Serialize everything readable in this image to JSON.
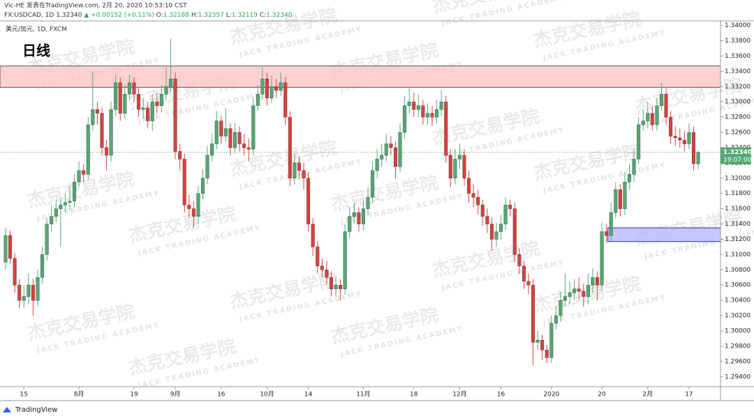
{
  "header": {
    "line1": "Vic-HE 发表在TradingView.com, 2月 20, 2020 10:53:10 CST",
    "symbol": "FX:USDCAD, 1D",
    "last": "1.32340",
    "change": "▲ +0.00152 (+0.11%)",
    "ohlc": [
      [
        "O:",
        "1.32188"
      ],
      [
        "H:",
        "1.32357"
      ],
      [
        "L:",
        "1.32119"
      ],
      [
        "C:",
        "1.32340"
      ]
    ]
  },
  "legend": {
    "pair": "美元/加元, 1D, FXCM",
    "timeframe": "日线"
  },
  "price_tag": {
    "price": "1.32340",
    "countdown": "19:07:00"
  },
  "watermark": {
    "cn": "杰克交易学院",
    "en": "JACK TRADING ACADEMY"
  },
  "brand": "TradingView",
  "chart_data": {
    "type": "candlestick",
    "up_color": "#53a874",
    "down_color": "#d9413e",
    "ylim": [
      1.2927,
      1.3406
    ],
    "yticks": [
      {
        "value": 1.294,
        "label": "1.29400"
      },
      {
        "value": 1.296,
        "label": "1.29600"
      },
      {
        "value": 1.298,
        "label": "1.29800"
      },
      {
        "value": 1.3,
        "label": "1.30000"
      },
      {
        "value": 1.302,
        "label": "1.30200"
      },
      {
        "value": 1.304,
        "label": "1.30400"
      },
      {
        "value": 1.306,
        "label": "1.30600"
      },
      {
        "value": 1.308,
        "label": "1.30800"
      },
      {
        "value": 1.31,
        "label": "1.31000"
      },
      {
        "value": 1.312,
        "label": "1.31200"
      },
      {
        "value": 1.314,
        "label": "1.31400"
      },
      {
        "value": 1.316,
        "label": "1.31600"
      },
      {
        "value": 1.318,
        "label": "1.31800"
      },
      {
        "value": 1.32,
        "label": "1.32000"
      },
      {
        "value": 1.322,
        "label": "1.32200"
      },
      {
        "value": 1.324,
        "label": "1.32400"
      },
      {
        "value": 1.326,
        "label": "1.32600"
      },
      {
        "value": 1.328,
        "label": "1.32800"
      },
      {
        "value": 1.33,
        "label": "1.33000"
      },
      {
        "value": 1.332,
        "label": "1.33200"
      },
      {
        "value": 1.334,
        "label": "1.33400"
      },
      {
        "value": 1.336,
        "label": "1.33600"
      },
      {
        "value": 1.338,
        "label": "1.33800"
      },
      {
        "value": 1.34,
        "label": "1.34000"
      }
    ],
    "zones": [
      {
        "low": 1.3319,
        "high": 1.3347,
        "color": "#ffc4c4",
        "border": "#555555"
      },
      {
        "low": 1.3117,
        "high": 1.3135,
        "start": 132,
        "color": "#b8b8ff",
        "border": "#2a2a9a"
      }
    ],
    "categories": [
      null,
      null,
      null,
      null,
      "15",
      null,
      null,
      null,
      null,
      null,
      null,
      null,
      null,
      null,
      null,
      null,
      "8月",
      null,
      null,
      null,
      null,
      null,
      null,
      null,
      null,
      null,
      null,
      null,
      "19",
      null,
      null,
      null,
      null,
      null,
      null,
      null,
      null,
      "9月",
      null,
      null,
      null,
      null,
      null,
      null,
      null,
      null,
      null,
      "16",
      null,
      null,
      null,
      null,
      null,
      null,
      null,
      null,
      null,
      "10月",
      null,
      null,
      null,
      null,
      null,
      null,
      null,
      null,
      "14",
      null,
      null,
      null,
      null,
      null,
      null,
      null,
      null,
      null,
      null,
      null,
      "11月",
      null,
      null,
      null,
      null,
      null,
      null,
      null,
      null,
      null,
      null,
      "18",
      null,
      null,
      null,
      null,
      null,
      null,
      null,
      null,
      null,
      "12月",
      null,
      null,
      null,
      null,
      null,
      null,
      null,
      null,
      "16",
      null,
      null,
      null,
      null,
      null,
      null,
      null,
      null,
      null,
      null,
      "2020",
      null,
      null,
      null,
      null,
      null,
      null,
      null,
      null,
      null,
      null,
      "20",
      null,
      null,
      null,
      null,
      null,
      null,
      null,
      null,
      null,
      "2月",
      null,
      null,
      null,
      null,
      null,
      null,
      null,
      null,
      "17",
      null,
      null
    ],
    "candles": [
      [
        1.309,
        1.3135,
        1.308,
        1.3125
      ],
      [
        1.3125,
        1.3132,
        1.3088,
        1.3095
      ],
      [
        1.3095,
        1.3102,
        1.305,
        1.306
      ],
      [
        1.306,
        1.3068,
        1.303,
        1.304
      ],
      [
        1.304,
        1.306,
        1.303,
        1.3045
      ],
      [
        1.3045,
        1.3075,
        1.3035,
        1.306
      ],
      [
        1.306,
        1.3068,
        1.302,
        1.304
      ],
      [
        1.304,
        1.308,
        1.3032,
        1.307
      ],
      [
        1.307,
        1.311,
        1.3062,
        1.31
      ],
      [
        1.31,
        1.3148,
        1.3092,
        1.314
      ],
      [
        1.314,
        1.3165,
        1.313,
        1.315
      ],
      [
        1.315,
        1.3172,
        1.3142,
        1.316
      ],
      [
        1.316,
        1.3175,
        1.311,
        1.3165
      ],
      [
        1.3165,
        1.318,
        1.3155,
        1.3168
      ],
      [
        1.3168,
        1.319,
        1.3158,
        1.317
      ],
      [
        1.317,
        1.3205,
        1.3162,
        1.3195
      ],
      [
        1.3195,
        1.3222,
        1.3188,
        1.321
      ],
      [
        1.321,
        1.3218,
        1.3195,
        1.3205
      ],
      [
        1.3205,
        1.328,
        1.3198,
        1.327
      ],
      [
        1.327,
        1.334,
        1.3262,
        1.329
      ],
      [
        1.329,
        1.33,
        1.327,
        1.3285
      ],
      [
        1.3285,
        1.3292,
        1.323,
        1.324
      ],
      [
        1.324,
        1.325,
        1.321,
        1.323
      ],
      [
        1.323,
        1.33,
        1.3222,
        1.329
      ],
      [
        1.329,
        1.3335,
        1.3282,
        1.3325
      ],
      [
        1.3325,
        1.3332,
        1.3275,
        1.3285
      ],
      [
        1.3285,
        1.3322,
        1.3278,
        1.331
      ],
      [
        1.331,
        1.3335,
        1.3302,
        1.3325
      ],
      [
        1.3325,
        1.3332,
        1.33,
        1.331
      ],
      [
        1.331,
        1.3318,
        1.328,
        1.329
      ],
      [
        1.329,
        1.3305,
        1.3278,
        1.3292
      ],
      [
        1.3292,
        1.33,
        1.3265,
        1.3275
      ],
      [
        1.3275,
        1.331,
        1.3262,
        1.33
      ],
      [
        1.33,
        1.3312,
        1.3285,
        1.3295
      ],
      [
        1.3295,
        1.3322,
        1.3286,
        1.331
      ],
      [
        1.331,
        1.3345,
        1.3302,
        1.332
      ],
      [
        1.332,
        1.3383,
        1.3312,
        1.333
      ],
      [
        1.333,
        1.3338,
        1.3225,
        1.3235
      ],
      [
        1.3235,
        1.3245,
        1.321,
        1.3225
      ],
      [
        1.3225,
        1.3232,
        1.3155,
        1.3165
      ],
      [
        1.3165,
        1.3178,
        1.3148,
        1.316
      ],
      [
        1.316,
        1.317,
        1.3135,
        1.315
      ],
      [
        1.315,
        1.319,
        1.314,
        1.318
      ],
      [
        1.318,
        1.3212,
        1.3172,
        1.32
      ],
      [
        1.32,
        1.3242,
        1.3192,
        1.323
      ],
      [
        1.323,
        1.3258,
        1.3222,
        1.3245
      ],
      [
        1.3245,
        1.3288,
        1.3238,
        1.3275
      ],
      [
        1.3275,
        1.3282,
        1.3245,
        1.3255
      ],
      [
        1.3255,
        1.3292,
        1.3248,
        1.3265
      ],
      [
        1.3265,
        1.3272,
        1.323,
        1.324
      ],
      [
        1.324,
        1.3272,
        1.3232,
        1.326
      ],
      [
        1.326,
        1.3268,
        1.3235,
        1.3245
      ],
      [
        1.3245,
        1.3258,
        1.323,
        1.324
      ],
      [
        1.324,
        1.3252,
        1.3222,
        1.3238
      ],
      [
        1.3238,
        1.3305,
        1.323,
        1.3295
      ],
      [
        1.3295,
        1.3322,
        1.3288,
        1.331
      ],
      [
        1.331,
        1.3345,
        1.3302,
        1.333
      ],
      [
        1.333,
        1.3338,
        1.3295,
        1.3305
      ],
      [
        1.3305,
        1.3335,
        1.3298,
        1.332
      ],
      [
        1.332,
        1.333,
        1.3305,
        1.3315
      ],
      [
        1.3315,
        1.3338,
        1.3308,
        1.3325
      ],
      [
        1.3325,
        1.3332,
        1.327,
        1.328
      ],
      [
        1.328,
        1.3288,
        1.319,
        1.32
      ],
      [
        1.32,
        1.3232,
        1.3192,
        1.322
      ],
      [
        1.322,
        1.3228,
        1.3198,
        1.321
      ],
      [
        1.321,
        1.322,
        1.3185,
        1.32
      ],
      [
        1.32,
        1.3208,
        1.313,
        1.314
      ],
      [
        1.314,
        1.3148,
        1.3098,
        1.311
      ],
      [
        1.311,
        1.3118,
        1.3075,
        1.3085
      ],
      [
        1.3085,
        1.3095,
        1.307,
        1.308
      ],
      [
        1.308,
        1.3092,
        1.306,
        1.307
      ],
      [
        1.307,
        1.3078,
        1.3045,
        1.3055
      ],
      [
        1.3055,
        1.3072,
        1.3046,
        1.306
      ],
      [
        1.306,
        1.3068,
        1.304,
        1.3055
      ],
      [
        1.3055,
        1.314,
        1.3048,
        1.313
      ],
      [
        1.313,
        1.3162,
        1.3122,
        1.315
      ],
      [
        1.315,
        1.3168,
        1.314,
        1.3155
      ],
      [
        1.3155,
        1.3162,
        1.313,
        1.314
      ],
      [
        1.314,
        1.3172,
        1.3132,
        1.316
      ],
      [
        1.316,
        1.3188,
        1.315,
        1.3175
      ],
      [
        1.3175,
        1.3222,
        1.3168,
        1.321
      ],
      [
        1.321,
        1.3238,
        1.32,
        1.3225
      ],
      [
        1.3225,
        1.3245,
        1.3215,
        1.323
      ],
      [
        1.323,
        1.3258,
        1.3222,
        1.3245
      ],
      [
        1.3245,
        1.3255,
        1.323,
        1.324
      ],
      [
        1.324,
        1.3248,
        1.32,
        1.3215
      ],
      [
        1.3215,
        1.3272,
        1.3208,
        1.326
      ],
      [
        1.326,
        1.3308,
        1.3252,
        1.3295
      ],
      [
        1.3295,
        1.3318,
        1.3285,
        1.33
      ],
      [
        1.33,
        1.3312,
        1.328,
        1.329
      ],
      [
        1.329,
        1.331,
        1.328,
        1.3295
      ],
      [
        1.3295,
        1.3302,
        1.327,
        1.328
      ],
      [
        1.328,
        1.3298,
        1.327,
        1.3285
      ],
      [
        1.3285,
        1.3295,
        1.3268,
        1.328
      ],
      [
        1.328,
        1.3302,
        1.3272,
        1.329
      ],
      [
        1.329,
        1.3315,
        1.3282,
        1.33
      ],
      [
        1.33,
        1.3308,
        1.322,
        1.323
      ],
      [
        1.323,
        1.3238,
        1.3188,
        1.32
      ],
      [
        1.32,
        1.3238,
        1.3192,
        1.3225
      ],
      [
        1.3225,
        1.3245,
        1.3212,
        1.323
      ],
      [
        1.323,
        1.3238,
        1.319,
        1.32
      ],
      [
        1.32,
        1.321,
        1.3168,
        1.318
      ],
      [
        1.318,
        1.3192,
        1.3162,
        1.3175
      ],
      [
        1.3175,
        1.3185,
        1.3152,
        1.3165
      ],
      [
        1.3165,
        1.3172,
        1.3138,
        1.315
      ],
      [
        1.315,
        1.316,
        1.3128,
        1.314
      ],
      [
        1.314,
        1.3148,
        1.3105,
        1.312
      ],
      [
        1.312,
        1.3142,
        1.311,
        1.313
      ],
      [
        1.313,
        1.3152,
        1.312,
        1.314
      ],
      [
        1.314,
        1.3175,
        1.3132,
        1.3165
      ],
      [
        1.3165,
        1.3172,
        1.315,
        1.316
      ],
      [
        1.316,
        1.3168,
        1.309,
        1.31
      ],
      [
        1.31,
        1.3108,
        1.3075,
        1.3085
      ],
      [
        1.3085,
        1.3092,
        1.3055,
        1.3065
      ],
      [
        1.3065,
        1.3075,
        1.3048,
        1.306
      ],
      [
        1.306,
        1.3068,
        1.2955,
        1.2985
      ],
      [
        1.2985,
        1.3,
        1.2975,
        1.2988
      ],
      [
        1.2988,
        1.2995,
        1.2962,
        1.2975
      ],
      [
        1.2975,
        1.2982,
        1.2958,
        1.2965
      ],
      [
        1.2965,
        1.302,
        1.2958,
        1.301
      ],
      [
        1.301,
        1.3032,
        1.3002,
        1.302
      ],
      [
        1.302,
        1.3052,
        1.3012,
        1.304
      ],
      [
        1.304,
        1.3075,
        1.3032,
        1.3045
      ],
      [
        1.3045,
        1.3065,
        1.3035,
        1.305
      ],
      [
        1.305,
        1.3068,
        1.304,
        1.3055
      ],
      [
        1.3055,
        1.307,
        1.3042,
        1.3052
      ],
      [
        1.3052,
        1.3062,
        1.3032,
        1.3045
      ],
      [
        1.3045,
        1.3075,
        1.3035,
        1.306
      ],
      [
        1.306,
        1.3082,
        1.305,
        1.307
      ],
      [
        1.307,
        1.3078,
        1.304,
        1.306
      ],
      [
        1.306,
        1.3142,
        1.3052,
        1.313
      ],
      [
        1.313,
        1.314,
        1.3115,
        1.3125
      ],
      [
        1.3125,
        1.3168,
        1.3118,
        1.3155
      ],
      [
        1.3155,
        1.3195,
        1.3148,
        1.3185
      ],
      [
        1.3185,
        1.3192,
        1.315,
        1.316
      ],
      [
        1.316,
        1.3208,
        1.3152,
        1.3195
      ],
      [
        1.3195,
        1.3218,
        1.3185,
        1.3205
      ],
      [
        1.3205,
        1.3238,
        1.3195,
        1.3225
      ],
      [
        1.3225,
        1.328,
        1.3218,
        1.327
      ],
      [
        1.327,
        1.329,
        1.3262,
        1.3275
      ],
      [
        1.3275,
        1.33,
        1.3265,
        1.3285
      ],
      [
        1.3285,
        1.3295,
        1.3262,
        1.327
      ],
      [
        1.327,
        1.3305,
        1.3262,
        1.3295
      ],
      [
        1.3295,
        1.3325,
        1.3288,
        1.331
      ],
      [
        1.331,
        1.3318,
        1.327,
        1.328
      ],
      [
        1.328,
        1.3288,
        1.3245,
        1.3255
      ],
      [
        1.3255,
        1.3268,
        1.3242,
        1.3253
      ],
      [
        1.3253,
        1.3265,
        1.324,
        1.325
      ],
      [
        1.325,
        1.3262,
        1.3235,
        1.3245
      ],
      [
        1.3245,
        1.3272,
        1.3238,
        1.326
      ],
      [
        1.326,
        1.3268,
        1.321,
        1.3219
      ],
      [
        1.32188,
        1.32357,
        1.32119,
        1.3234
      ]
    ]
  }
}
